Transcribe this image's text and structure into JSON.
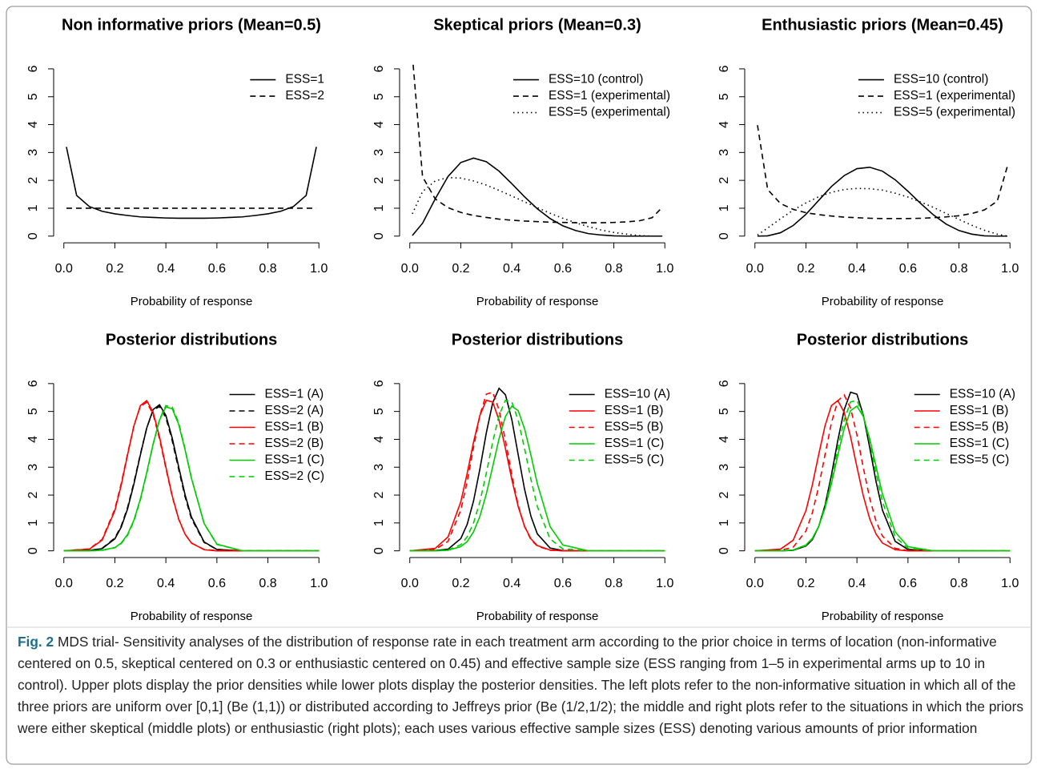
{
  "chart_data": [
    {
      "type": "line",
      "title": "Non informative priors (Mean=0.5)",
      "xlabel": "Probability of response",
      "x": [
        0.01,
        0.05,
        0.1,
        0.15,
        0.2,
        0.25,
        0.3,
        0.35,
        0.4,
        0.45,
        0.5,
        0.55,
        0.6,
        0.65,
        0.7,
        0.75,
        0.8,
        0.85,
        0.9,
        0.95,
        0.99
      ],
      "series": [
        {
          "name": "ESS=1",
          "color": "#000000",
          "dash": "solid",
          "values": [
            3.2,
            1.46,
            1.06,
            0.89,
            0.8,
            0.74,
            0.69,
            0.67,
            0.65,
            0.64,
            0.64,
            0.64,
            0.65,
            0.67,
            0.69,
            0.74,
            0.8,
            0.89,
            1.06,
            1.46,
            3.2
          ]
        },
        {
          "name": "ESS=2",
          "color": "#000000",
          "dash": "dashed",
          "values": [
            1,
            1,
            1,
            1,
            1,
            1,
            1,
            1,
            1,
            1,
            1,
            1,
            1,
            1,
            1,
            1,
            1,
            1,
            1,
            1,
            1
          ]
        }
      ],
      "xlim": [
        -0.04,
        1.04
      ],
      "ylim": [
        -0.24,
        6.24
      ],
      "xticks": [
        {
          "value": 0,
          "label": "0.0"
        },
        0.2,
        0.4,
        0.6,
        0.8,
        {
          "value": 1,
          "label": "1.0"
        }
      ],
      "yticks": [
        0,
        1,
        2,
        3,
        4,
        5,
        6
      ],
      "legend": "topright"
    },
    {
      "type": "line",
      "title": "Skeptical priors (Mean=0.3)",
      "xlabel": "Probability of response",
      "x": [
        0.01,
        0.05,
        0.1,
        0.15,
        0.2,
        0.25,
        0.3,
        0.35,
        0.4,
        0.45,
        0.5,
        0.55,
        0.6,
        0.65,
        0.7,
        0.75,
        0.8,
        0.85,
        0.9,
        0.95,
        0.99
      ],
      "series": [
        {
          "name": "ESS=10 (control)",
          "color": "#000000",
          "dash": "solid",
          "values": [
            0.02,
            0.46,
            1.34,
            2.14,
            2.64,
            2.8,
            2.67,
            2.33,
            1.88,
            1.41,
            0.98,
            0.63,
            0.37,
            0.2,
            0.09,
            0.04,
            0.01,
            0,
            0,
            0,
            0
          ]
        },
        {
          "name": "ESS=1 (experimental)",
          "color": "#000000",
          "dash": "dashed",
          "values": [
            6.49,
            2.13,
            1.33,
            1.02,
            0.85,
            0.74,
            0.67,
            0.61,
            0.57,
            0.54,
            0.52,
            0.5,
            0.49,
            0.48,
            0.48,
            0.48,
            0.49,
            0.51,
            0.55,
            0.66,
            1.03
          ]
        },
        {
          "name": "ESS=5 (experimental)",
          "color": "#000000",
          "dash": "dotted",
          "values": [
            0.8,
            1.6,
            1.98,
            2.1,
            2.08,
            1.98,
            1.83,
            1.64,
            1.44,
            1.23,
            1.02,
            0.82,
            0.64,
            0.48,
            0.34,
            0.22,
            0.13,
            0.07,
            0.02,
            0,
            0
          ]
        }
      ],
      "xlim": [
        -0.04,
        1.04
      ],
      "ylim": [
        -0.24,
        6.24
      ],
      "xticks": [
        {
          "value": 0,
          "label": "0.0"
        },
        0.2,
        0.4,
        0.6,
        0.8,
        {
          "value": 1,
          "label": "1.0"
        }
      ],
      "yticks": [
        0,
        1,
        2,
        3,
        4,
        5,
        6
      ],
      "legend": "topright"
    },
    {
      "type": "line",
      "title": "Enthusiastic priors (Mean=0.45)",
      "xlabel": "Probability of response",
      "x": [
        0.01,
        0.05,
        0.1,
        0.15,
        0.2,
        0.25,
        0.3,
        0.35,
        0.4,
        0.45,
        0.5,
        0.55,
        0.6,
        0.65,
        0.7,
        0.75,
        0.8,
        0.85,
        0.9,
        0.95,
        0.99
      ],
      "series": [
        {
          "name": "ESS=10 (control)",
          "color": "#000000",
          "dash": "solid",
          "values": [
            0,
            0.01,
            0.12,
            0.38,
            0.78,
            1.28,
            1.78,
            2.17,
            2.42,
            2.47,
            2.33,
            2.02,
            1.61,
            1.17,
            0.76,
            0.43,
            0.2,
            0.07,
            0.01,
            0,
            0
          ]
        },
        {
          "name": "ESS=1 (experimental)",
          "color": "#000000",
          "dash": "dashed",
          "values": [
            3.98,
            1.67,
            1.17,
            0.96,
            0.84,
            0.77,
            0.72,
            0.68,
            0.66,
            0.64,
            0.63,
            0.63,
            0.63,
            0.64,
            0.66,
            0.69,
            0.73,
            0.81,
            0.94,
            1.25,
            2.51
          ]
        },
        {
          "name": "ESS=5 (experimental)",
          "color": "#000000",
          "dash": "dotted",
          "values": [
            0.04,
            0.29,
            0.62,
            0.93,
            1.19,
            1.41,
            1.57,
            1.67,
            1.71,
            1.7,
            1.65,
            1.54,
            1.4,
            1.22,
            1.03,
            0.81,
            0.6,
            0.39,
            0.21,
            0.07,
            0
          ]
        }
      ],
      "xlim": [
        -0.04,
        1.04
      ],
      "ylim": [
        -0.24,
        6.24
      ],
      "xticks": [
        {
          "value": 0,
          "label": "0.0"
        },
        0.2,
        0.4,
        0.6,
        0.8,
        {
          "value": 1,
          "label": "1.0"
        }
      ],
      "yticks": [
        0,
        1,
        2,
        3,
        4,
        5,
        6
      ],
      "legend": "topright"
    },
    {
      "type": "line",
      "title": "Posterior distributions",
      "xlabel": "Probability of response",
      "x": [
        0,
        0.1,
        0.15,
        0.2,
        0.225,
        0.25,
        0.275,
        0.3,
        0.325,
        0.35,
        0.375,
        0.4,
        0.425,
        0.45,
        0.475,
        0.5,
        0.55,
        0.6,
        0.7,
        1
      ],
      "series": [
        {
          "name": "ESS=1 (A)",
          "color": "#000000",
          "dash": "solid",
          "values": [
            0,
            0.01,
            0.08,
            0.43,
            0.85,
            1.51,
            2.41,
            3.44,
            4.41,
            5.07,
            5.24,
            4.86,
            4.04,
            3.02,
            2.02,
            1.22,
            0.32,
            0.05,
            0,
            0
          ]
        },
        {
          "name": "ESS=2 (A)",
          "color": "#000000",
          "dash": "dashed",
          "values": [
            0,
            0.01,
            0.09,
            0.46,
            0.89,
            1.56,
            2.46,
            3.47,
            4.41,
            5.04,
            5.18,
            4.78,
            3.95,
            2.93,
            1.95,
            1.16,
            0.3,
            0.05,
            0,
            0
          ]
        },
        {
          "name": "ESS=1 (B)",
          "color": "#ff0000",
          "dash": "solid",
          "values": [
            0,
            0.06,
            0.38,
            1.44,
            2.36,
            3.45,
            4.49,
            5.21,
            5.39,
            4.97,
            4.09,
            3.01,
            1.97,
            1.15,
            0.6,
            0.28,
            0.04,
            0,
            0,
            0
          ]
        },
        {
          "name": "ESS=2 (B)",
          "color": "#ff0000",
          "dash": "dashed",
          "values": [
            0,
            0.07,
            0.41,
            1.5,
            2.42,
            3.49,
            4.5,
            5.18,
            5.33,
            4.9,
            4.02,
            2.96,
            1.94,
            1.14,
            0.6,
            0.28,
            0.05,
            0.01,
            0,
            0
          ]
        },
        {
          "name": "ESS=1 (C)",
          "color": "#00cc00",
          "dash": "solid",
          "values": [
            0,
            0,
            0.02,
            0.12,
            0.28,
            0.59,
            1.11,
            1.86,
            2.81,
            3.83,
            4.69,
            5.16,
            5.1,
            4.54,
            3.63,
            2.61,
            0.98,
            0.24,
            0,
            0
          ]
        },
        {
          "name": "ESS=2 (C)",
          "color": "#00cc00",
          "dash": "dashed",
          "values": [
            0,
            0,
            0.02,
            0.11,
            0.26,
            0.56,
            1.07,
            1.82,
            2.78,
            3.82,
            4.71,
            5.21,
            5.16,
            4.6,
            3.67,
            2.63,
            0.97,
            0.23,
            0,
            0
          ]
        }
      ],
      "xlim": [
        -0.04,
        1.04
      ],
      "ylim": [
        -0.24,
        6.24
      ],
      "xticks": [
        {
          "value": 0,
          "label": "0.0"
        },
        0.2,
        0.4,
        0.6,
        0.8,
        {
          "value": 1,
          "label": "1.0"
        }
      ],
      "yticks": [
        0,
        1,
        2,
        3,
        4,
        5,
        6
      ],
      "legend": "topright"
    },
    {
      "type": "line",
      "title": "Posterior distributions",
      "xlabel": "Probability of response",
      "x": [
        0,
        0.1,
        0.15,
        0.2,
        0.225,
        0.25,
        0.275,
        0.3,
        0.325,
        0.35,
        0.375,
        0.4,
        0.425,
        0.45,
        0.475,
        0.5,
        0.55,
        0.6,
        0.7,
        1
      ],
      "series": [
        {
          "name": "ESS=10 (A)",
          "color": "#000000",
          "dash": "solid",
          "values": [
            0,
            0.01,
            0.06,
            0.44,
            0.95,
            1.79,
            2.94,
            4.23,
            5.31,
            5.83,
            5.6,
            4.71,
            3.45,
            2.21,
            1.24,
            0.61,
            0.1,
            0.01,
            0,
            0
          ]
        },
        {
          "name": "ESS=1 (B)",
          "color": "#ff0000",
          "dash": "solid",
          "values": [
            0,
            0.09,
            0.5,
            1.76,
            2.78,
            3.9,
            4.86,
            5.4,
            5.34,
            4.69,
            3.67,
            2.56,
            1.59,
            0.88,
            0.43,
            0.19,
            0.03,
            0,
            0,
            0
          ]
        },
        {
          "name": "ESS=5 (B)",
          "color": "#ff0000",
          "dash": "dashed",
          "values": [
            0,
            0.05,
            0.34,
            1.46,
            2.48,
            3.71,
            4.87,
            5.62,
            5.69,
            5.06,
            3.96,
            2.72,
            1.64,
            0.87,
            0.4,
            0.17,
            0.02,
            0,
            0,
            0
          ]
        },
        {
          "name": "ESS=1 (C)",
          "color": "#00cc00",
          "dash": "solid",
          "values": [
            0,
            0,
            0.02,
            0.15,
            0.33,
            0.68,
            1.24,
            2.04,
            3.02,
            4.02,
            4.82,
            5.19,
            5.03,
            4.38,
            3.43,
            2.41,
            0.87,
            0.21,
            0,
            0
          ]
        },
        {
          "name": "ESS=5 (C)",
          "color": "#00cc00",
          "dash": "dashed",
          "values": [
            0,
            0,
            0.03,
            0.22,
            0.5,
            1,
            1.76,
            2.78,
            3.9,
            4.86,
            5.4,
            5.34,
            4.69,
            3.67,
            2.56,
            1.59,
            0.43,
            0.07,
            0,
            0
          ]
        }
      ],
      "xlim": [
        -0.04,
        1.04
      ],
      "ylim": [
        -0.24,
        6.24
      ],
      "xticks": [
        {
          "value": 0,
          "label": "0.0"
        },
        0.2,
        0.4,
        0.6,
        0.8,
        {
          "value": 1,
          "label": "1.0"
        }
      ],
      "yticks": [
        0,
        1,
        2,
        3,
        4,
        5,
        6
      ],
      "legend": "topright"
    },
    {
      "type": "line",
      "title": "Posterior distributions",
      "xlabel": "Probability of response",
      "x": [
        0,
        0.1,
        0.15,
        0.2,
        0.225,
        0.25,
        0.275,
        0.3,
        0.325,
        0.35,
        0.375,
        0.4,
        0.425,
        0.45,
        0.475,
        0.5,
        0.55,
        0.6,
        0.7,
        1
      ],
      "series": [
        {
          "name": "ESS=10 (A)",
          "color": "#000000",
          "dash": "solid",
          "values": [
            0,
            0,
            0.02,
            0.17,
            0.4,
            0.87,
            1.64,
            2.72,
            3.96,
            5.06,
            5.69,
            5.62,
            4.87,
            3.71,
            2.48,
            1.46,
            0.34,
            0.05,
            0,
            0
          ]
        },
        {
          "name": "ESS=1 (B)",
          "color": "#ff0000",
          "dash": "solid",
          "values": [
            0,
            0.06,
            0.38,
            1.44,
            2.36,
            3.45,
            4.49,
            5.21,
            5.39,
            4.97,
            4.09,
            3.01,
            1.97,
            1.15,
            0.6,
            0.28,
            0.04,
            0,
            0,
            0
          ]
        },
        {
          "name": "ESS=5 (B)",
          "color": "#ff0000",
          "dash": "dashed",
          "values": [
            0,
            0.02,
            0.13,
            0.71,
            1.36,
            2.3,
            3.45,
            4.59,
            5.38,
            5.59,
            5.12,
            4.16,
            2.98,
            1.89,
            1.06,
            0.53,
            0.09,
            0.01,
            0,
            0
          ]
        },
        {
          "name": "ESS=1 (C)",
          "color": "#00cc00",
          "dash": "solid",
          "values": [
            0,
            0,
            0.03,
            0.21,
            0.45,
            0.87,
            1.53,
            2.41,
            3.43,
            4.38,
            5.03,
            5.19,
            4.82,
            4.02,
            3.02,
            2.04,
            0.68,
            0.15,
            0,
            0
          ]
        },
        {
          "name": "ESS=5 (C)",
          "color": "#00cc00",
          "dash": "dashed",
          "values": [
            0,
            0,
            0.03,
            0.19,
            0.43,
            0.88,
            1.59,
            2.56,
            3.67,
            4.69,
            5.34,
            5.4,
            4.86,
            3.9,
            2.78,
            1.76,
            0.5,
            0.09,
            0,
            0
          ]
        }
      ],
      "xlim": [
        -0.04,
        1.04
      ],
      "ylim": [
        -0.24,
        6.24
      ],
      "xticks": [
        {
          "value": 0,
          "label": "0.0"
        },
        0.2,
        0.4,
        0.6,
        0.8,
        {
          "value": 1,
          "label": "1.0"
        }
      ],
      "yticks": [
        0,
        1,
        2,
        3,
        4,
        5,
        6
      ],
      "legend": "topright"
    }
  ],
  "caption": {
    "label": "Fig. 2",
    "text": "MDS trial- Sensitivity analyses of the distribution of response rate in each treatment arm according to the prior choice in terms of location (non-informative centered on 0.5, skeptical centered on 0.3 or enthusiastic centered on 0.45) and effective sample size (ESS ranging from 1–5 in experimental arms up to 10 in control). Upper plots display the prior densities while lower plots display the posterior densities. The left plots refer to the non-informative situation in which all of the three priors are uniform over [0,1] (Be (1,1)) or distributed according to Jeffreys prior (Be (1/2,1/2); the middle and right plots refer to the situations in which the priors were either skeptical (middle plots) or enthusiastic (right plots); each uses various effective sample sizes (ESS) denoting various amounts of prior information"
  }
}
